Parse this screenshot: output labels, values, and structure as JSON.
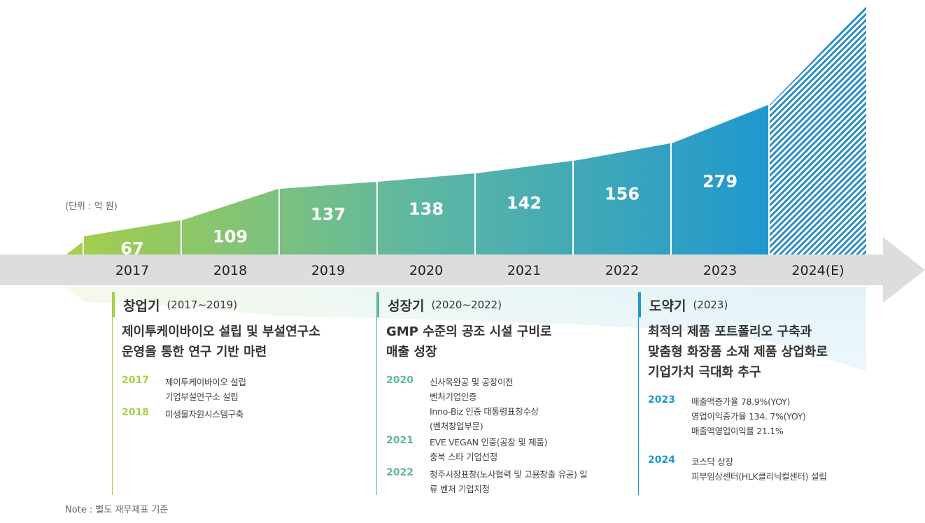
{
  "unit_note": "(단위 : 억 원)",
  "footnote": "Note : 별도 재무제표 기준",
  "chart_data": {
    "type": "area",
    "categories": [
      "2017",
      "2018",
      "2019",
      "2020",
      "2021",
      "2022",
      "2023",
      "2024(E)"
    ],
    "values": [
      67,
      109,
      137,
      138,
      142,
      156,
      279,
      null
    ],
    "value_labels": [
      "67",
      "109",
      "137",
      "138",
      "142",
      "156",
      "279",
      ""
    ],
    "estimated_category": "2024(E)",
    "unit": "억 원",
    "colors": {
      "start": "#a6cf4b",
      "mid": "#5eb7a2",
      "end": "#1f98cf",
      "hatch": "#2a8dc4",
      "axis_band": "#dddddd"
    }
  },
  "phases": [
    {
      "name": "창업기",
      "period": "(2017~2019)",
      "color": "#a6cf4b",
      "summary": [
        "제이투케이바이오 설립 및 부설연구소",
        "운영을 통한 연구 기반 마련"
      ],
      "milestones": [
        {
          "year": "2017",
          "lines": [
            "제이투케이바이오 설립",
            "기업부설연구소 설립"
          ]
        },
        {
          "year": "2018",
          "lines": [
            "미생물자원시스템구축"
          ]
        }
      ]
    },
    {
      "name": "성장기",
      "period": "(2020~2022)",
      "color": "#5eb7a2",
      "summary": [
        "GMP 수준의 공조 시설 구비로",
        "매출 성장"
      ],
      "milestones": [
        {
          "year": "2020",
          "lines": [
            "신사옥완공 및 공장이전",
            "벤처기업인증",
            "Inno-Biz 인증 대통령표창수상",
            "(벤처창업부문)"
          ]
        },
        {
          "year": "2021",
          "lines": [
            "EVE VEGAN 인증(공장 및 제품)",
            "충북 스타 기업선정"
          ]
        },
        {
          "year": "2022",
          "lines": [
            "청주시장표창(노사협력 및 고용창출 유공) 일",
            "류 벤처 기업지정"
          ]
        }
      ]
    },
    {
      "name": "도약기",
      "period": "(2023)",
      "color": "#1f98cf",
      "summary": [
        "최적의 제품 포트폴리오 구축과",
        "맞춤형 화장품 소재 제품 상업화로",
        "기업가치 극대화 추구"
      ],
      "milestones": [
        {
          "year": "2023",
          "lines": [
            "매출액증가율 78.9%(YOY)",
            "영업이익증가율 134. 7%(YOY)",
            "매출액영업이익률 21.1%"
          ]
        },
        {
          "year": "2024",
          "lines": [
            "코스닥 상장",
            "피부임상센터(HLK클리닉컬센터) 설립"
          ]
        }
      ]
    }
  ]
}
